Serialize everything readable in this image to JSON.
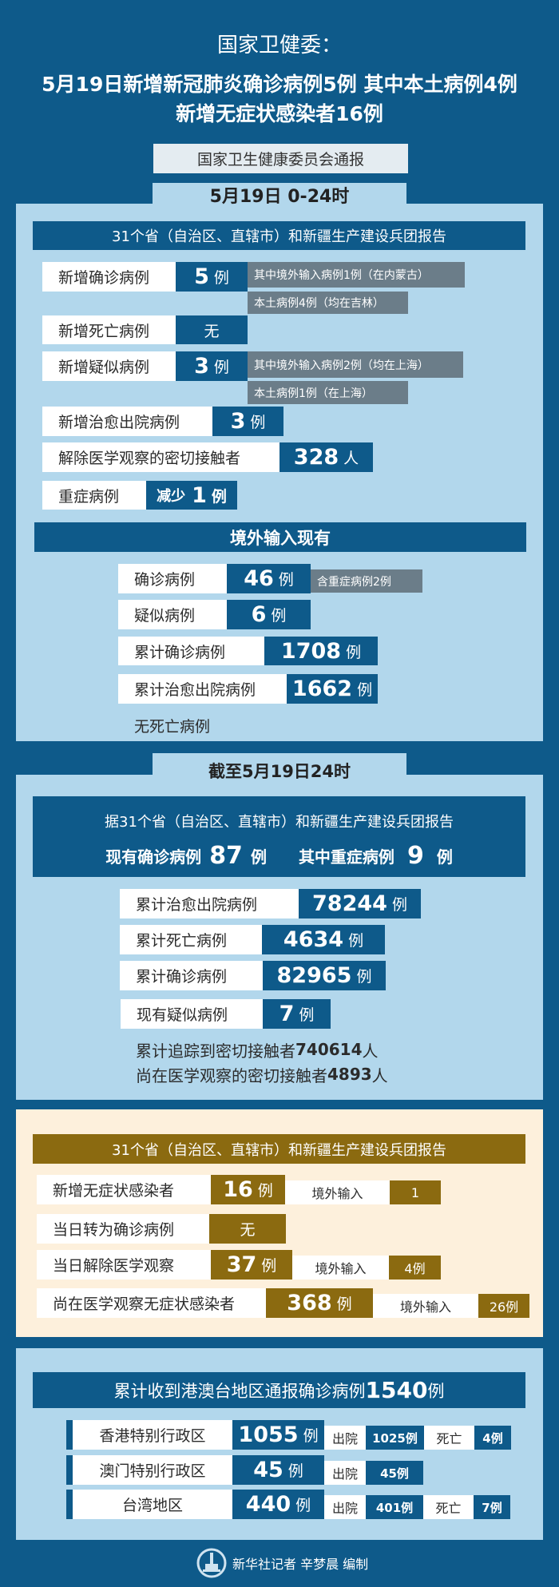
{
  "header": {
    "org": "国家卫健委：",
    "headline1": "5月19日新增新冠肺炎确诊病例5例 其中本土病例4例",
    "headline2": "新增无症状感染者16例",
    "source": "国家卫生健康委员会通报"
  },
  "daily": {
    "tab": "5月19日 0-24时",
    "bar": "31个省（自治区、直辖市）和新疆生产建设兵团报告",
    "rows": [
      {
        "label": "新增确诊病例",
        "value": "5",
        "unit": "例",
        "notes": [
          "其中境外输入病例1例（在内蒙古）",
          "本土病例4例（均在吉林）"
        ]
      },
      {
        "label": "新增死亡病例",
        "value": "无"
      },
      {
        "label": "新增疑似病例",
        "value": "3",
        "unit": "例",
        "notes": [
          "其中境外输入病例2例（均在上海）",
          "本土病例1例（在上海）"
        ]
      },
      {
        "label": "新增治愈出院病例",
        "value": "3",
        "unit": "例"
      },
      {
        "label": "解除医学观察的密切接触者",
        "value": "328",
        "unit": "人"
      },
      {
        "label": "重症病例",
        "prefix": "减少",
        "value": "1",
        "unit": "例"
      }
    ],
    "imported": {
      "title": "境外输入现有",
      "rows": [
        {
          "label": "确诊病例",
          "value": "46",
          "unit": "例",
          "note": "含重症病例2例"
        },
        {
          "label": "疑似病例",
          "value": "6",
          "unit": "例"
        },
        {
          "label": "累计确诊病例",
          "value": "1708",
          "unit": "例"
        },
        {
          "label": "累计治愈出院病例",
          "value": "1662",
          "unit": "例"
        }
      ],
      "footer": "无死亡病例"
    }
  },
  "cumulative": {
    "tab": "截至5月19日24时",
    "intro": "据31个省（自治区、直辖市）和新疆生产建设兵团报告",
    "current_label": "现有确诊病例",
    "current_value": "87",
    "severe_label": "其中重症病例",
    "severe_value": "9",
    "unit": "例",
    "rows": [
      {
        "label": "累计治愈出院病例",
        "value": "78244",
        "unit": "例"
      },
      {
        "label": "累计死亡病例",
        "value": "4634",
        "unit": "例"
      },
      {
        "label": "累计确诊病例",
        "value": "82965",
        "unit": "例"
      },
      {
        "label": "现有疑似病例",
        "value": "7",
        "unit": "例"
      }
    ],
    "contacts_traced": "累计追踪到密切接触者",
    "contacts_traced_value": "740614",
    "contacts_obs": "尚在医学观察的密切接触者",
    "contacts_obs_value": "4893",
    "person_unit": "人"
  },
  "asymptomatic": {
    "bar": "31个省（自治区、直辖市）和新疆生产建设兵团报告",
    "rows": [
      {
        "label": "新增无症状感染者",
        "value": "16",
        "unit": "例",
        "sub_label": "境外输入",
        "sub_value": "1"
      },
      {
        "label": "当日转为确诊病例",
        "value": "无"
      },
      {
        "label": "当日解除医学观察",
        "value": "37",
        "unit": "例",
        "sub_label": "境外输入",
        "sub_value": "4例"
      },
      {
        "label": "尚在医学观察无症状感染者",
        "value": "368",
        "unit": "例",
        "sub_label": "境外输入",
        "sub_value": "26例"
      }
    ]
  },
  "hmt": {
    "title": "累计收到港澳台地区通报确诊病例",
    "title_value": "1540",
    "unit": "例",
    "discharged": "出院",
    "deaths": "死亡",
    "rows": [
      {
        "label": "香港特别行政区",
        "value": "1055",
        "discharged": "1025例",
        "deaths": "4例"
      },
      {
        "label": "澳门特别行政区",
        "value": "45",
        "discharged": "45例"
      },
      {
        "label": "台湾地区",
        "value": "440",
        "discharged": "401例",
        "deaths": "7例"
      }
    ]
  },
  "footer": {
    "credit": "新华社记者 辛梦晨 编制"
  },
  "colors": {
    "dark_blue": "#0e5a8a",
    "light_blue": "#b2d7ec",
    "note_gray": "#6b7d89",
    "beige": "#fdf0dc",
    "gold": "#8b6a10"
  }
}
